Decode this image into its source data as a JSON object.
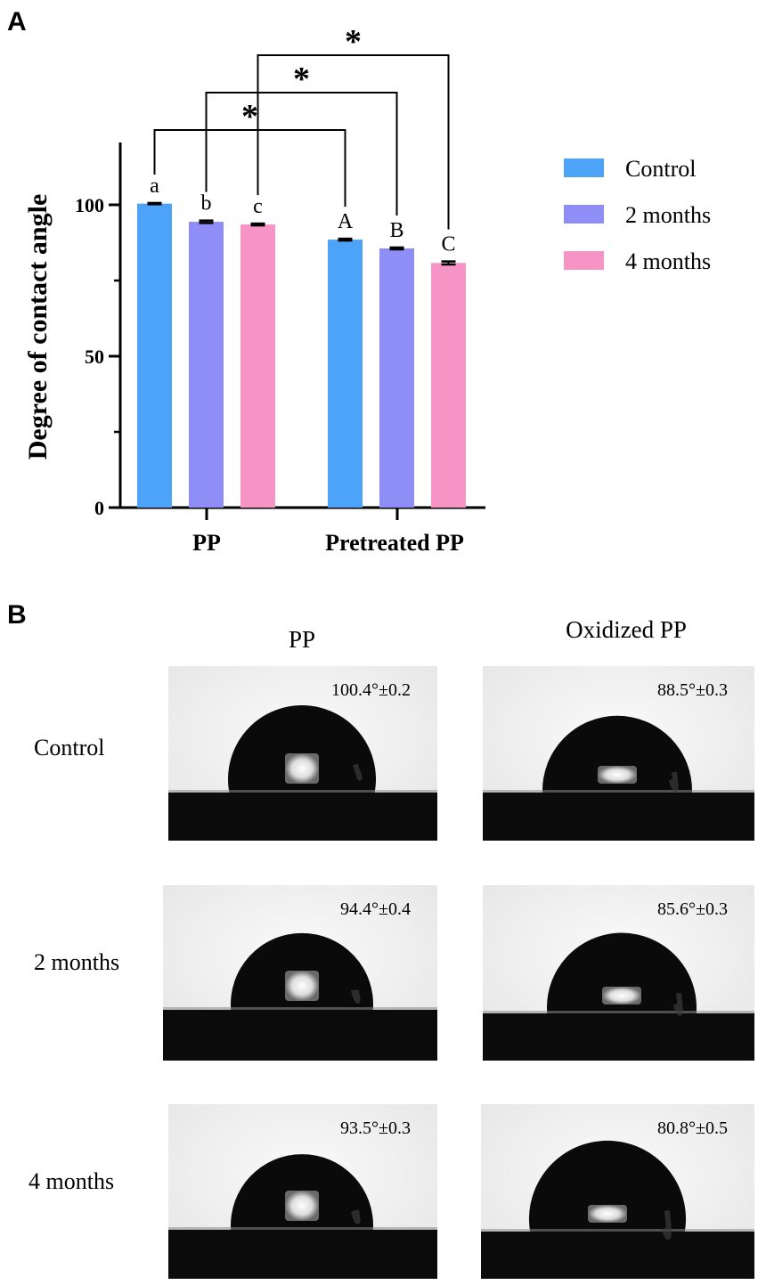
{
  "panel_a": {
    "label": "A"
  },
  "panel_b": {
    "label": "B",
    "columns": [
      "PP",
      "Oxidized PP"
    ],
    "rows": [
      "Control",
      "2 months",
      "4 months"
    ],
    "angles": [
      [
        "100.4°±0.2",
        "88.5°±0.3"
      ],
      [
        "94.4°±0.4",
        "85.6°±0.3"
      ],
      [
        "93.5°±0.3",
        "80.8°±0.5"
      ]
    ],
    "contact_angles_deg": [
      [
        100.4,
        88.5
      ],
      [
        94.4,
        85.6
      ],
      [
        93.5,
        80.8
      ]
    ]
  },
  "chart_data": {
    "type": "bar",
    "title": "",
    "xlabel": "",
    "ylabel": "Degree of contact angle",
    "ylim": [
      0,
      120
    ],
    "yticks": [
      0,
      50,
      100
    ],
    "categories": [
      "PP",
      "Pretreated PP"
    ],
    "series": [
      {
        "name": "Control",
        "color": "#4da3f7",
        "values": [
          100.4,
          88.5
        ],
        "errors": [
          0.2,
          0.3
        ],
        "letters": [
          "a",
          "A"
        ]
      },
      {
        "name": "2 months",
        "color": "#8f8ef7",
        "values": [
          94.4,
          85.6
        ],
        "errors": [
          0.4,
          0.3
        ],
        "letters": [
          "b",
          "B"
        ]
      },
      {
        "name": "4 months",
        "color": "#f794c6",
        "values": [
          93.5,
          80.8
        ],
        "errors": [
          0.3,
          0.5
        ],
        "letters": [
          "c",
          "C"
        ]
      }
    ],
    "significance": [
      {
        "series": "Control",
        "symbol": "*"
      },
      {
        "series": "2 months",
        "symbol": "*"
      },
      {
        "series": "4 months",
        "symbol": "*"
      }
    ],
    "legend": {
      "position": "right",
      "entries": [
        "Control",
        "2 months",
        "4 months"
      ]
    },
    "grid": false
  }
}
